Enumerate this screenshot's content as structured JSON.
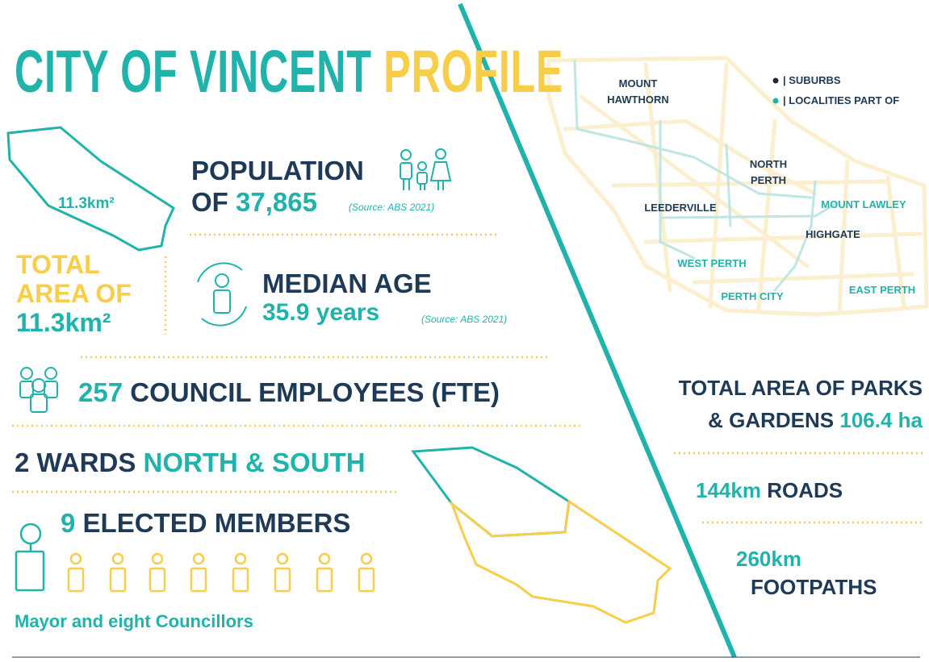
{
  "title": {
    "part1": "CITY OF VINCENT",
    "part2": "PROFILE"
  },
  "area": {
    "map_label": "11.3km²",
    "line1": "TOTAL",
    "line2": "AREA OF",
    "value": "11.3km²"
  },
  "population": {
    "label": "POPULATION",
    "of": "OF",
    "value": "37,865",
    "source": "(Source: ABS 2021)"
  },
  "median_age": {
    "label": "MEDIAN AGE",
    "value": "35.9 years",
    "source": "(Source: ABS 2021)"
  },
  "employees": {
    "value": "257",
    "label": "COUNCIL EMPLOYEES (FTE)"
  },
  "wards": {
    "count": "2 WARDS",
    "names": "NORTH & SOUTH"
  },
  "elected": {
    "count": "9",
    "label": "ELECTED MEMBERS",
    "note": "Mayor and eight Councillors"
  },
  "map": {
    "legend": [
      {
        "label": "| SUBURBS",
        "color": "#1e2a36"
      },
      {
        "label": "| LOCALITIES PART OF",
        "color": "#1fb3ac"
      }
    ],
    "places": [
      {
        "label": "MOUNT HAWTHORN",
        "color": "#1e3a56"
      },
      {
        "label": "NORTH PERTH",
        "color": "#1e3a56"
      },
      {
        "label": "LEEDERVILLE",
        "color": "#1e3a56"
      },
      {
        "label": "MOUNT LAWLEY",
        "color": "#1fb3ac"
      },
      {
        "label": "HIGHGATE",
        "color": "#1e3a56"
      },
      {
        "label": "WEST PERTH",
        "color": "#1fb3ac"
      },
      {
        "label": "PERTH CITY",
        "color": "#1fb3ac"
      },
      {
        "label": "EAST PERTH",
        "color": "#1fb3ac"
      }
    ]
  },
  "parks": {
    "line1": "TOTAL AREA OF PARKS",
    "line2": "& GARDENS",
    "value": "106.4 ha"
  },
  "roads": {
    "value": "144km",
    "label": "ROADS"
  },
  "footpaths": {
    "value": "260km",
    "label": "FOOTPATHS"
  }
}
